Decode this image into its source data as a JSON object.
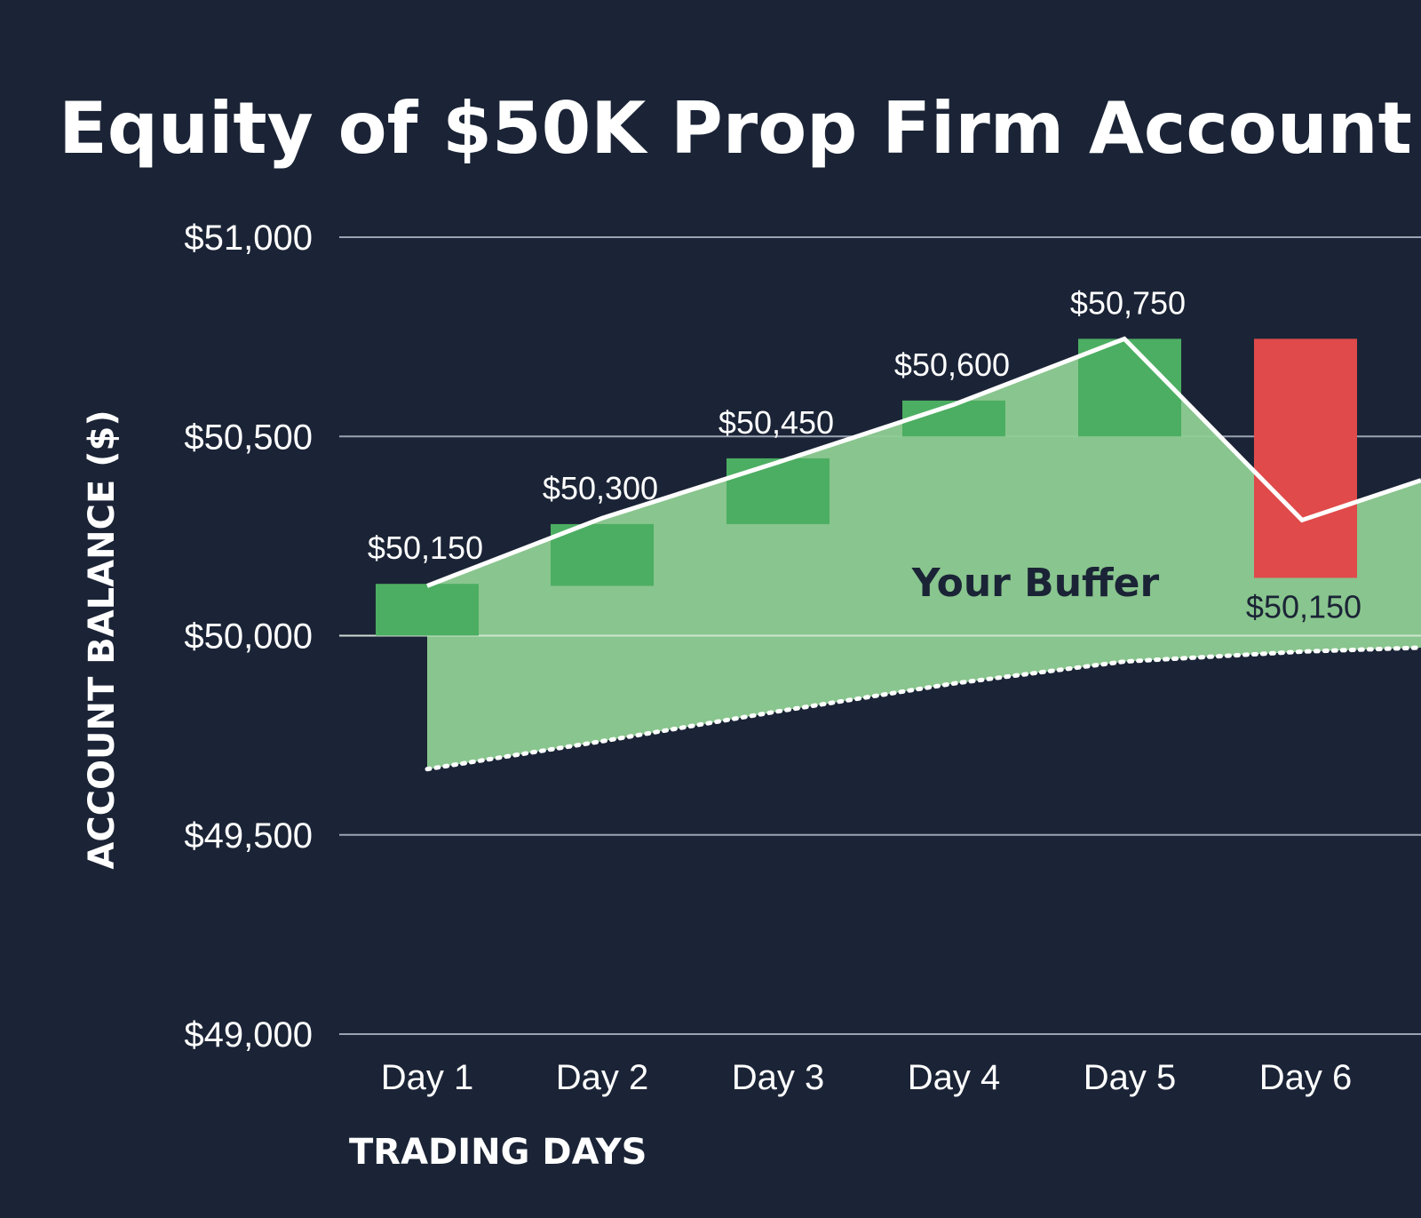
{
  "chart_data": {
    "type": "bar",
    "title": "Equity of $50K Prop Firm Account",
    "xlabel": "TRADING DAYS",
    "ylabel": "ACCOUNT BALANCE ($)",
    "ylim": [
      49000,
      51000
    ],
    "yticks": [
      51000,
      50500,
      50000,
      49500,
      49000
    ],
    "ytick_labels": [
      "$51,000",
      "$50,500",
      "$50,000",
      "$49,500",
      "$49,000"
    ],
    "grid": true,
    "categories": [
      "Day 1",
      "Day 2",
      "Day 3",
      "Day 4",
      "Day 5",
      "Day 6"
    ],
    "bars": [
      {
        "day": "Day 1",
        "low": 50000,
        "high": 50130,
        "direction": "up"
      },
      {
        "day": "Day 2",
        "low": 50125,
        "high": 50280,
        "direction": "up"
      },
      {
        "day": "Day 3",
        "low": 50280,
        "high": 50445,
        "direction": "up"
      },
      {
        "day": "Day 4",
        "low": 50500,
        "high": 50590,
        "direction": "up"
      },
      {
        "day": "Day 5",
        "low": 50500,
        "high": 50745,
        "direction": "up"
      },
      {
        "day": "Day 6",
        "low": 50145,
        "high": 50745,
        "direction": "down"
      }
    ],
    "equity_line": [
      50125,
      50295,
      50435,
      50580,
      50745,
      50290,
      50390
    ],
    "drawdown_floor": [
      49665,
      49735,
      49810,
      49880,
      49935,
      49960,
      49970
    ],
    "data_labels": [
      "$50,150",
      "$50,300",
      "$50,450",
      "$50,600",
      "$50,750",
      "$50,150"
    ],
    "annotation": "Your Buffer",
    "colors": {
      "background": "#1b2436",
      "up": "#4cae62",
      "down": "#e04a4a",
      "buffer_fill": "#8fcf94",
      "line": "#ffffff",
      "grid": "#9aa3b2"
    }
  }
}
